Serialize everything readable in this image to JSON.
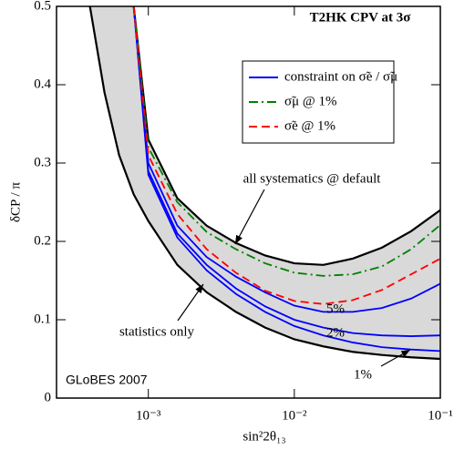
{
  "chart_data": {
    "type": "line",
    "title": "T2HK  CPV at 3σ",
    "x_label": "sin²2θ₁₃",
    "y_label": "δCP / π",
    "x": [
      0.000398,
      0.000501,
      0.000631,
      0.000794,
      0.001,
      0.00158,
      0.00251,
      0.00398,
      0.00631,
      0.01,
      0.0158,
      0.0251,
      0.0398,
      0.0631,
      0.1
    ],
    "xscale": "log",
    "xlim": [
      0.000235,
      0.1
    ],
    "xticks": [
      {
        "value": 0.001,
        "label": "10⁻³"
      },
      {
        "value": 0.01,
        "label": "10⁻²"
      },
      {
        "value": 0.1,
        "label": "10⁻¹"
      }
    ],
    "ylim": [
      0,
      0.5
    ],
    "yticks": [
      0,
      0.1,
      0.2,
      0.3,
      0.4,
      0.5
    ],
    "band_color": "#d9d9d9",
    "series": [
      {
        "label": "statistics only",
        "color": "#000000",
        "dash": "solid",
        "values": [
          0.5,
          0.39,
          0.31,
          0.26,
          0.226,
          0.17,
          0.135,
          0.11,
          0.09,
          0.075,
          0.066,
          0.059,
          0.055,
          0.052,
          0.05
        ]
      },
      {
        "label": "all systematics @ default",
        "color": "#000000",
        "dash": "solid",
        "values": [
          null,
          null,
          null,
          0.5,
          0.33,
          0.255,
          0.22,
          0.198,
          0.182,
          0.172,
          0.17,
          0.178,
          0.192,
          0.213,
          0.24
        ]
      },
      {
        "label": "5%",
        "color": "#0000ff",
        "dash": "solid",
        "values": [
          null,
          null,
          null,
          0.5,
          0.3,
          0.22,
          0.18,
          0.155,
          0.135,
          0.118,
          0.11,
          0.11,
          0.115,
          0.127,
          0.146
        ]
      },
      {
        "label": "2%",
        "color": "#0000ff",
        "dash": "solid",
        "values": [
          null,
          null,
          null,
          0.5,
          0.29,
          0.21,
          0.17,
          0.14,
          0.117,
          0.1,
          0.09,
          0.083,
          0.08,
          0.079,
          0.08
        ]
      },
      {
        "label": "1%",
        "color": "#0000ff",
        "dash": "solid",
        "values": [
          null,
          null,
          null,
          0.5,
          0.285,
          0.205,
          0.163,
          0.133,
          0.11,
          0.092,
          0.08,
          0.071,
          0.065,
          0.062,
          0.06
        ]
      },
      {
        "color": "#008000",
        "dash": "dashdot",
        "values": [
          null,
          null,
          null,
          0.5,
          0.32,
          0.25,
          0.212,
          0.19,
          0.172,
          0.16,
          0.156,
          0.158,
          0.168,
          0.19,
          0.221
        ]
      },
      {
        "color": "#ff0000",
        "dash": "dash",
        "values": [
          null,
          null,
          null,
          0.5,
          0.31,
          0.235,
          0.19,
          0.16,
          0.137,
          0.124,
          0.12,
          0.125,
          0.138,
          0.158,
          0.178
        ]
      }
    ],
    "legend": {
      "position": "upper right",
      "entries": [
        {
          "label": "constraint on σ̃e / σ̃μ",
          "color": "#0000ff",
          "dash": "solid"
        },
        {
          "label": "σ̃μ @ 1%",
          "color": "#008000",
          "dash": "dashdot"
        },
        {
          "label": "σ̃e @ 1%",
          "color": "#ff0000",
          "dash": "dash"
        }
      ]
    },
    "note": "GLoBES 2007"
  }
}
